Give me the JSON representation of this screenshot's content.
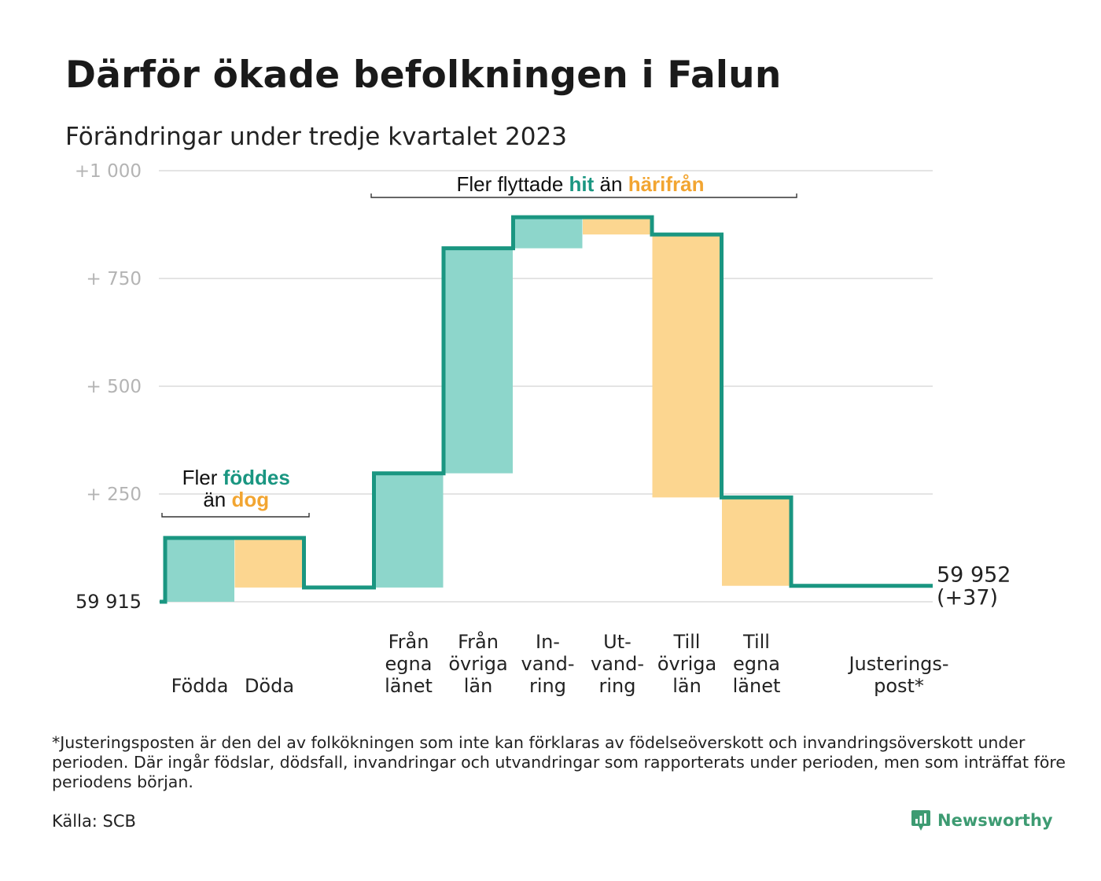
{
  "title": "Därför ökade befolkningen i Falun",
  "subtitle": "Förändringar under tredje kvartalet 2023",
  "colors": {
    "teal_line": "#1a9681",
    "teal_fill": "#8dd6cb",
    "orange_fill": "#fcd690",
    "teal_text": "#1a9681",
    "orange_text": "#f2a531",
    "grid": "#e4e4e4",
    "brand": "#3d9b72"
  },
  "chart_data": {
    "type": "waterfall",
    "base": 59915,
    "ylim": [
      0,
      1000
    ],
    "y_ticks": [
      {
        "value": 1000,
        "label": "+1  000"
      },
      {
        "value": 750,
        "label": "+  750"
      },
      {
        "value": 500,
        "label": "+  500"
      },
      {
        "value": 250,
        "label": "+  250"
      },
      {
        "value": 0,
        "label": "59  915"
      }
    ],
    "steps": [
      {
        "label": [
          "Födda"
        ],
        "change": 148,
        "kind": "increase"
      },
      {
        "label": [
          "Döda"
        ],
        "change": -115,
        "kind": "decrease"
      },
      {
        "label": [
          "Från",
          "egna",
          "länet"
        ],
        "change": 265,
        "kind": "increase"
      },
      {
        "label": [
          "Från",
          "övriga",
          "län"
        ],
        "change": 522,
        "kind": "increase"
      },
      {
        "label": [
          "In-",
          "vand-",
          "ring"
        ],
        "change": 72,
        "kind": "increase"
      },
      {
        "label": [
          "Ut-",
          "vand-",
          "ring"
        ],
        "change": -40,
        "kind": "decrease"
      },
      {
        "label": [
          "Till",
          "övriga",
          "län"
        ],
        "change": -610,
        "kind": "decrease"
      },
      {
        "label": [
          "Till",
          "egna",
          "länet"
        ],
        "change": -205,
        "kind": "decrease"
      },
      {
        "label": [
          "Justerings-",
          "post*"
        ],
        "change": 0,
        "kind": "adjustment"
      }
    ],
    "end_label": [
      "59 952",
      "(+37)"
    ],
    "annotations": [
      {
        "lines": [
          [
            "Fler ",
            "föddes"
          ],
          [
            "än ",
            "dog"
          ]
        ],
        "span": [
          0,
          1
        ]
      },
      {
        "lines": [
          [
            "Fler flyttade ",
            "hit",
            " än ",
            "härifrån"
          ]
        ],
        "span": [
          2,
          7
        ]
      }
    ],
    "grid": true
  },
  "footnote": "*Justeringsposten är den del av folkökningen som inte kan förklaras av födelseöverskott och invandringsöverskott under perioden. Där ingår födslar, dödsfall, invandringar och utvandringar som rapporterats under perioden, men som inträffat före periodens början.",
  "source": "Källa: SCB",
  "brand": {
    "name": "Newsworthy",
    "icon": "bar-chart-badge-icon"
  }
}
